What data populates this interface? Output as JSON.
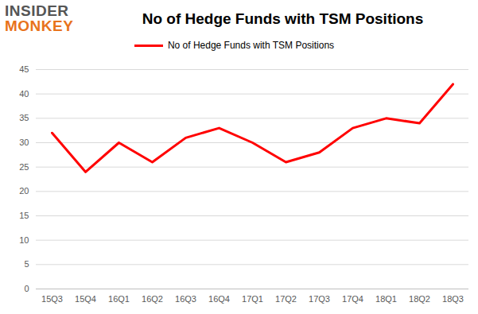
{
  "chart_data": {
    "type": "line",
    "title": "No of Hedge Funds with TSM Positions",
    "annotations": [
      "INSIDER",
      "MONKEY"
    ],
    "categories": [
      "15Q3",
      "15Q4",
      "16Q1",
      "16Q2",
      "16Q3",
      "16Q4",
      "17Q1",
      "17Q2",
      "17Q3",
      "17Q4",
      "18Q1",
      "18Q2",
      "18Q3"
    ],
    "series": [
      {
        "name": "No of Hedge Funds with TSM Positions",
        "color": "#ff0000",
        "values": [
          32,
          24,
          30,
          26,
          31,
          33,
          30,
          26,
          28,
          33,
          35,
          34,
          42
        ]
      }
    ],
    "ylim": [
      0,
      45
    ],
    "yticks": [
      0,
      5,
      10,
      15,
      20,
      25,
      30,
      35,
      40,
      45
    ],
    "grid": true,
    "legend": "top"
  }
}
